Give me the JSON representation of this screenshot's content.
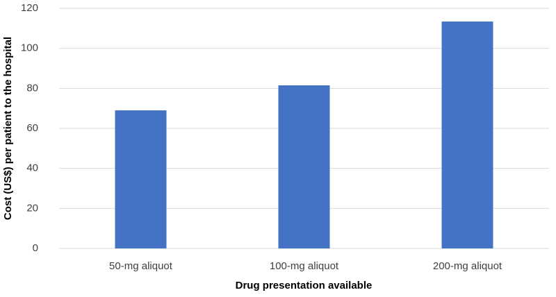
{
  "chart_data": {
    "type": "bar",
    "categories": [
      "50-mg aliquot",
      "100-mg aliquot",
      "200-mg aliquot"
    ],
    "values": [
      69,
      81.5,
      113.4
    ],
    "color": "#4472c4",
    "x_label": "Drug presentation available",
    "y_label": "Cost (US$) per patient to the hospital",
    "ylim": [
      0,
      120
    ],
    "yticks": [
      0,
      20,
      40,
      60,
      80,
      100,
      120
    ],
    "grid": true
  }
}
